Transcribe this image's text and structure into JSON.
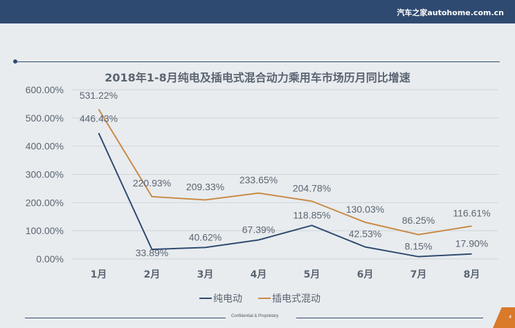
{
  "header": {
    "brand": "汽车之家autohome.com.cn"
  },
  "footer": {
    "text": "Confidential & Proprietary",
    "page_number": "4"
  },
  "colors": {
    "ev": "#2f4a70",
    "phev": "#c98a45",
    "grid": "#cfd5da",
    "text": "#5a6470"
  },
  "chart_data": {
    "type": "line",
    "title": "2018年1-8月纯电及插电式混合动力乘用车市场历月同比增速",
    "categories": [
      "1月",
      "2月",
      "3月",
      "4月",
      "5月",
      "6月",
      "7月",
      "8月"
    ],
    "ylim": [
      0,
      600
    ],
    "yticks": [
      "0.00%",
      "100.00%",
      "200.00%",
      "300.00%",
      "400.00%",
      "500.00%",
      "600.00%"
    ],
    "series": [
      {
        "name": "纯电动",
        "values": [
          446.43,
          33.89,
          40.62,
          67.39,
          118.85,
          42.53,
          8.15,
          17.9
        ],
        "labels": [
          "446.43%",
          "33.89%",
          "40.62%",
          "67.39%",
          "118.85%",
          "42.53%",
          "8.15%",
          "17.90%"
        ]
      },
      {
        "name": "插电式混动",
        "values": [
          531.22,
          220.93,
          209.33,
          233.65,
          204.78,
          130.03,
          86.25,
          116.61
        ],
        "labels": [
          "531.22%",
          "220.93%",
          "209.33%",
          "233.65%",
          "204.78%",
          "130.03%",
          "86.25%",
          "116.61%"
        ]
      }
    ],
    "legend": "bottom-center"
  }
}
